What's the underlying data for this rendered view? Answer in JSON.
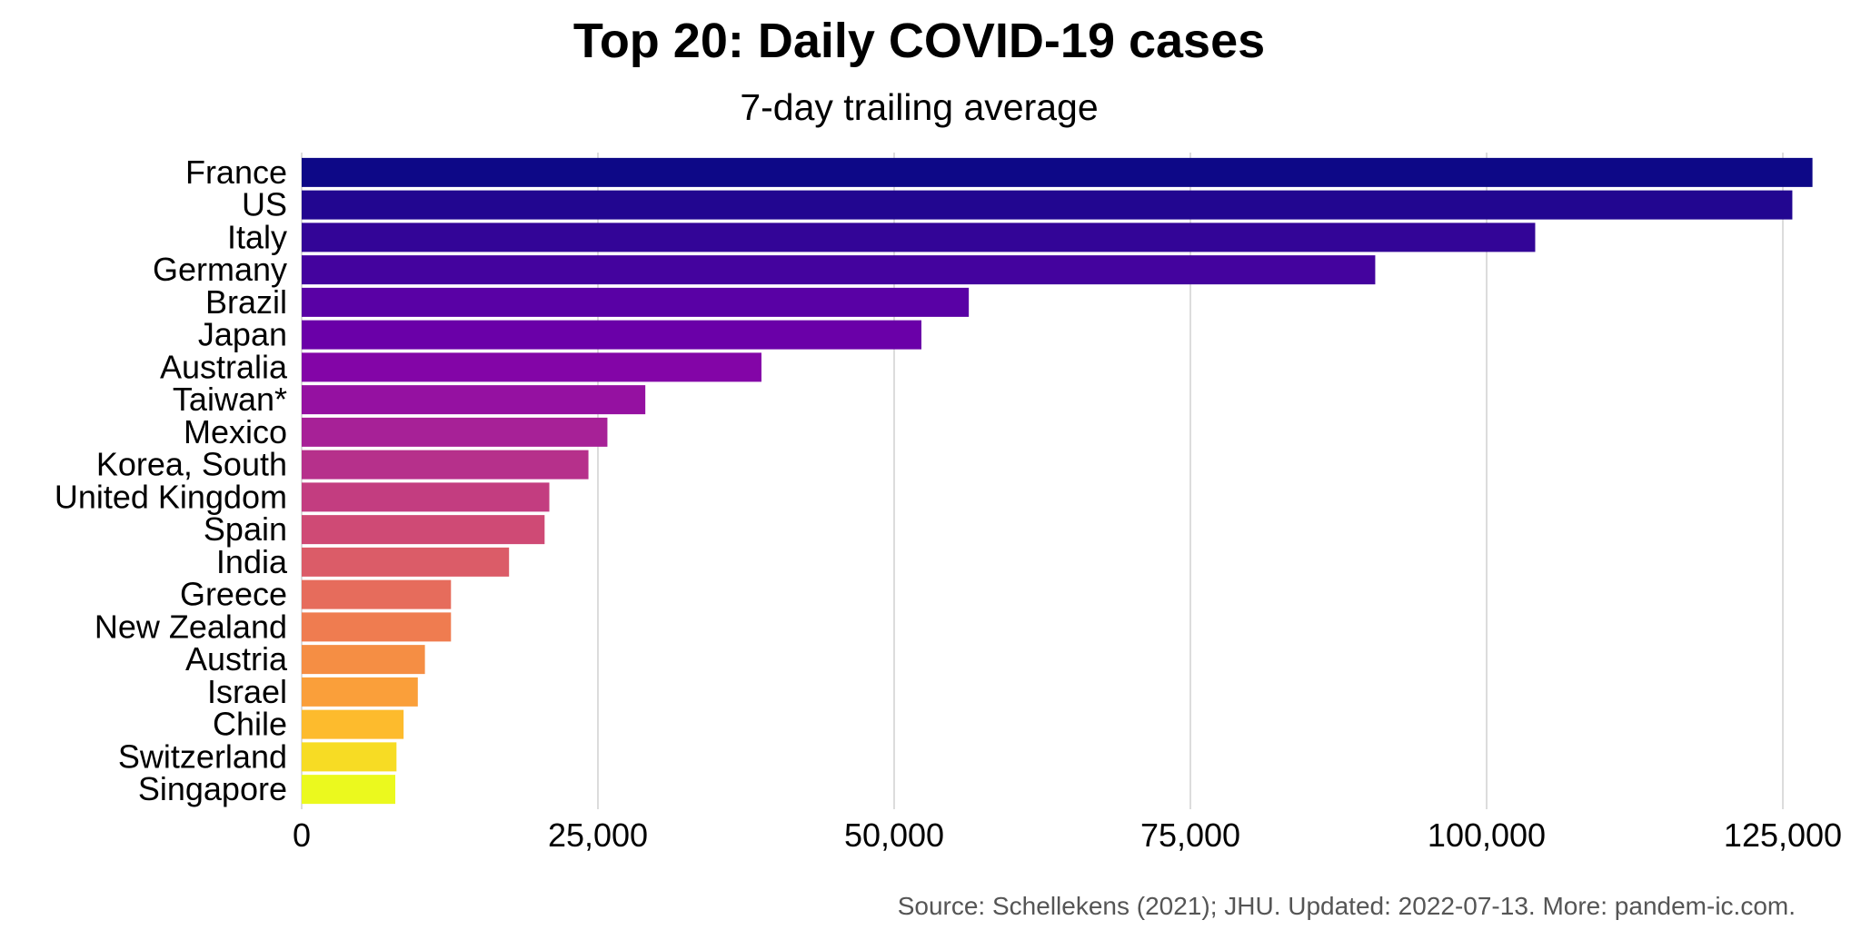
{
  "chart_data": {
    "type": "bar",
    "orientation": "horizontal",
    "title": "Top 20: Daily COVID-19 cases",
    "subtitle": "7-day trailing average",
    "caption": "Source: Schellekens (2021); JHU. Updated: 2022-07-13. More: pandem-ic.com.",
    "xlabel": "",
    "ylabel": "",
    "xlim": [
      0,
      127500
    ],
    "x_ticks": [
      0,
      25000,
      50000,
      75000,
      100000,
      125000
    ],
    "x_tick_labels": [
      "0",
      "25,000",
      "50,000",
      "75,000",
      "100,000",
      "125,000"
    ],
    "grid": "vertical",
    "legend": "none",
    "color_scale": "plasma",
    "categories": [
      "France",
      "US",
      "Italy",
      "Germany",
      "Brazil",
      "Japan",
      "Australia",
      "Taiwan*",
      "Mexico",
      "Korea, South",
      "United Kingdom",
      "Spain",
      "India",
      "Greece",
      "New Zealand",
      "Austria",
      "Israel",
      "Chile",
      "Switzerland",
      "Singapore"
    ],
    "values": [
      127500,
      125800,
      104100,
      90600,
      56300,
      52300,
      38800,
      29000,
      25800,
      24200,
      20900,
      20500,
      17500,
      12600,
      12600,
      10400,
      9800,
      8600,
      8000,
      7900
    ],
    "colors": [
      "#0d0887",
      "#220690",
      "#330597",
      "#44039e",
      "#5901a5",
      "#6a00a8",
      "#8305a7",
      "#9511a1",
      "#a72197",
      "#b6308b",
      "#c33d80",
      "#cf4a75",
      "#db5c68",
      "#e66c5c",
      "#ef7c50",
      "#f58e44",
      "#fa9f3a",
      "#fdbb2d",
      "#f7dc24",
      "#ebf91e"
    ]
  }
}
